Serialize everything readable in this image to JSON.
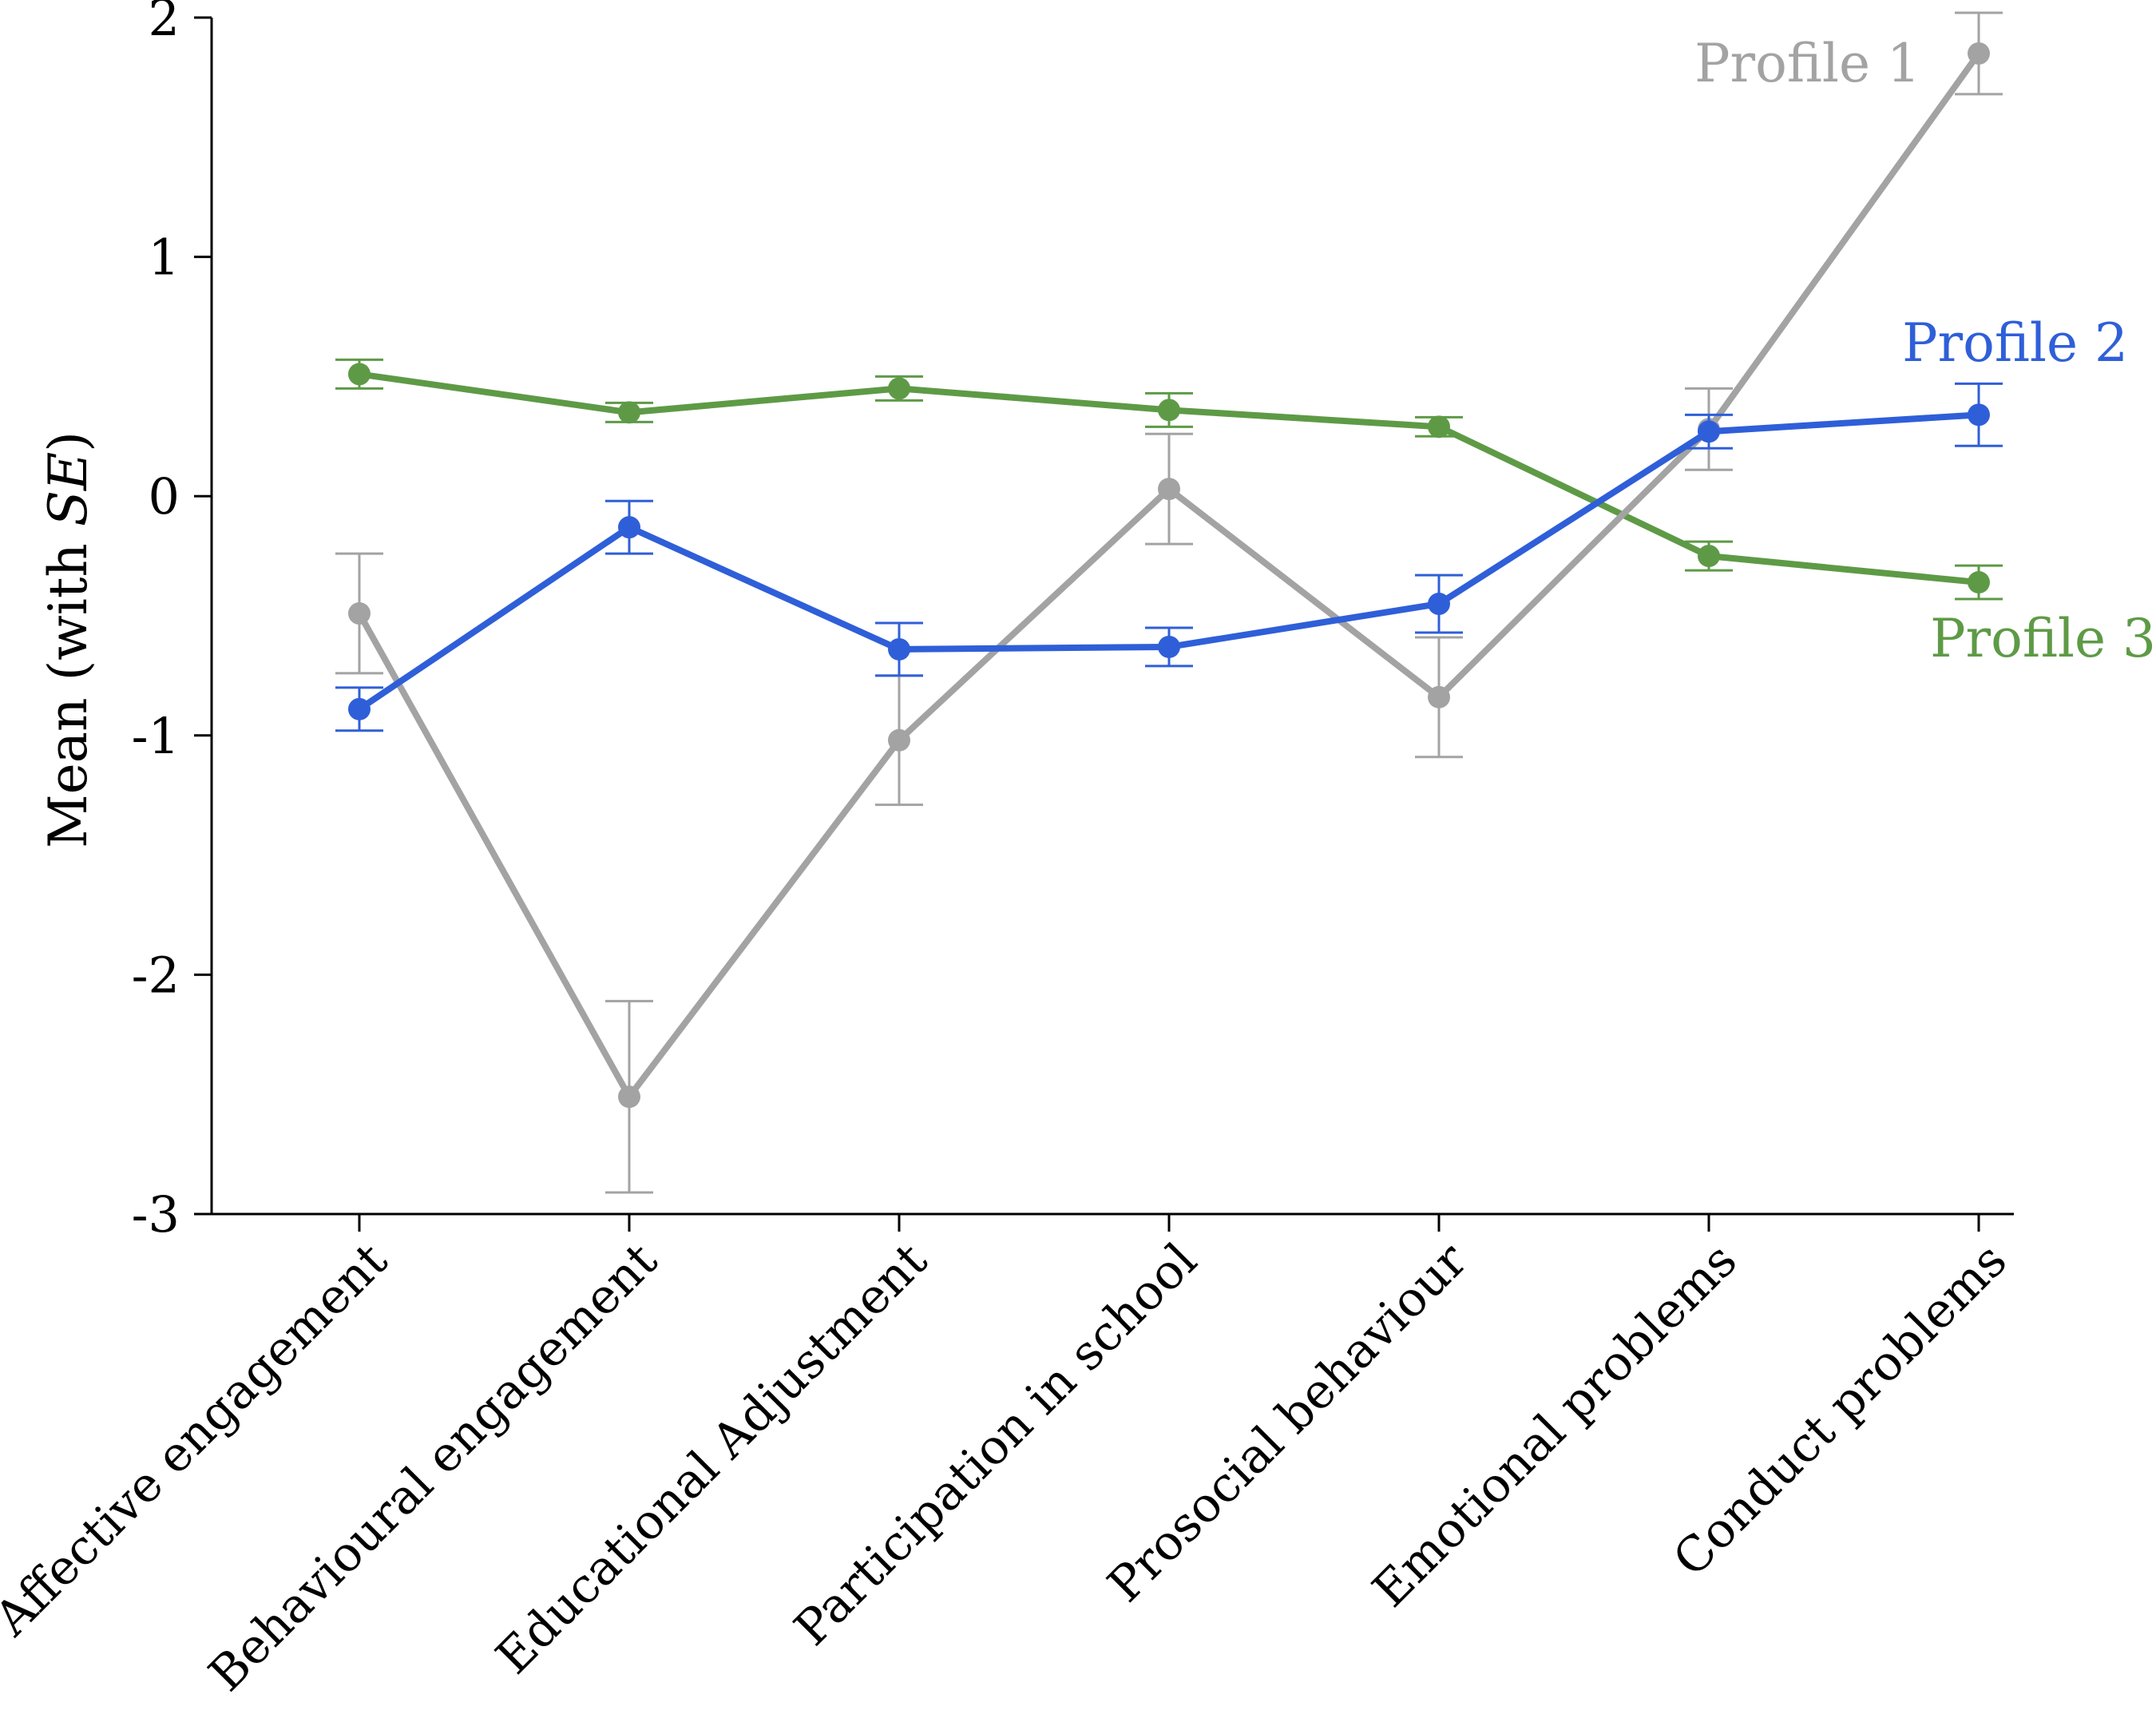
{
  "chart_data": {
    "type": "line",
    "title": "",
    "xlabel": "",
    "ylabel": "Mean (with SE)",
    "ylabel_parts": [
      "Mean (with ",
      "SE",
      ")"
    ],
    "ylim": [
      -3,
      2
    ],
    "yticks": [
      "-3",
      "-2",
      "-1",
      "0",
      "1",
      "2"
    ],
    "grid": false,
    "categories": [
      "Affective engagement",
      "Behavioural engagement",
      "Educational Adjustment",
      "Participation in school",
      "Prosocial behaviour",
      "Emotional problems",
      "Conduct problems"
    ],
    "series": [
      {
        "name": "Profile 1",
        "color": "#a3a3a3",
        "values": [
          -0.49,
          -2.51,
          -1.02,
          0.03,
          -0.84,
          0.28,
          1.85
        ],
        "se": [
          0.25,
          0.4,
          0.27,
          0.23,
          0.25,
          0.17,
          0.17
        ]
      },
      {
        "name": "Profile 2",
        "color": "#2f5fd8",
        "values": [
          -0.89,
          -0.13,
          -0.64,
          -0.63,
          -0.45,
          0.27,
          0.34
        ],
        "se": [
          0.09,
          0.11,
          0.11,
          0.08,
          0.12,
          0.07,
          0.13
        ]
      },
      {
        "name": "Profile 3",
        "color": "#5e9a46",
        "values": [
          0.51,
          0.35,
          0.45,
          0.36,
          0.29,
          -0.25,
          -0.36
        ],
        "se": [
          0.06,
          0.04,
          0.05,
          0.07,
          0.04,
          0.06,
          0.07
        ]
      }
    ]
  }
}
